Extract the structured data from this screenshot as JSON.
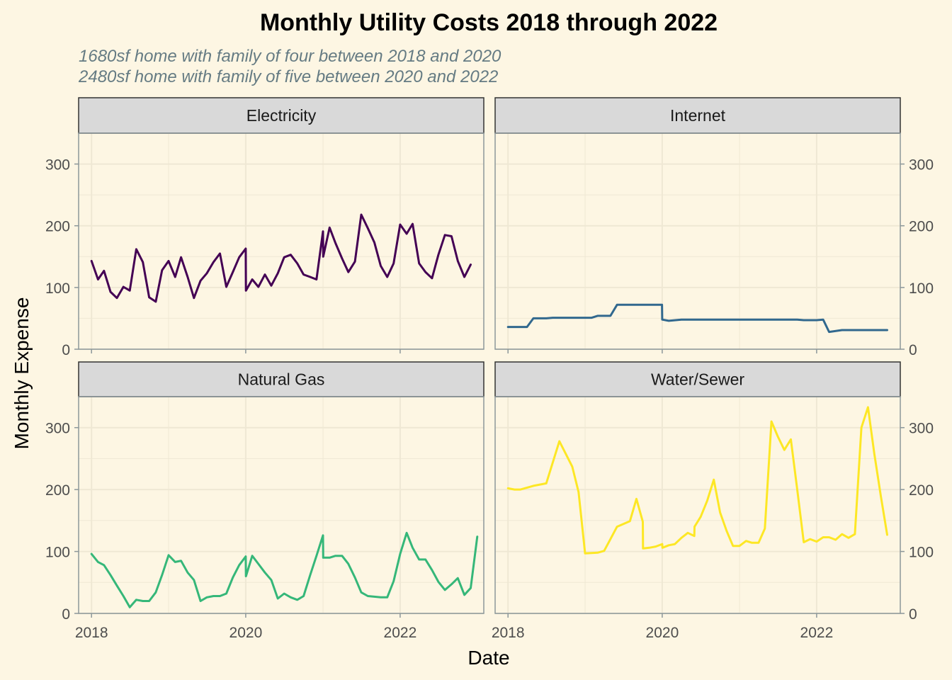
{
  "title": "Monthly Utility Costs 2018 through 2022",
  "subtitle_lines": [
    "1680sf home with family of four between 2018 and 2020",
    "2480sf home with family of five between 2020 and 2022"
  ],
  "colors": {
    "background": "#fdf6e3",
    "strip": "#d9d9d9",
    "grid": "#efe8d4",
    "axis": "#8c979a",
    "subtitle": "#657b83"
  },
  "chart_data": {
    "type": "line",
    "facet_layout": "2x2",
    "xlabel": "Date",
    "ylabel": "Monthly Expense",
    "x_ticks": [
      "2018",
      "2020",
      "2022"
    ],
    "y_ticks": [
      0,
      100,
      200,
      300
    ],
    "xlim": [
      "2017-11-01",
      "2023-02-01"
    ],
    "ylim": [
      0,
      350
    ],
    "grid": true,
    "legend": "none",
    "panels": [
      {
        "name": "Electricity",
        "color": "#440154",
        "points": [
          [
            "2018-01-01",
            143
          ],
          [
            "2018-02-01",
            113
          ],
          [
            "2018-03-01",
            127
          ],
          [
            "2018-04-01",
            93
          ],
          [
            "2018-05-01",
            83
          ],
          [
            "2018-06-01",
            101
          ],
          [
            "2018-07-01",
            95
          ],
          [
            "2018-08-01",
            162
          ],
          [
            "2018-09-01",
            141
          ],
          [
            "2018-10-01",
            84
          ],
          [
            "2018-11-01",
            77
          ],
          [
            "2018-12-01",
            128
          ],
          [
            "2019-01-01",
            143
          ],
          [
            "2019-02-01",
            117
          ],
          [
            "2019-03-01",
            149
          ],
          [
            "2019-04-01",
            117
          ],
          [
            "2019-05-01",
            83
          ],
          [
            "2019-06-01",
            111
          ],
          [
            "2019-07-01",
            123
          ],
          [
            "2019-08-01",
            141
          ],
          [
            "2019-09-01",
            155
          ],
          [
            "2019-10-01",
            101
          ],
          [
            "2019-11-01",
            125
          ],
          [
            "2019-12-01",
            149
          ],
          [
            "2020-01-01",
            163
          ],
          [
            "2020-01-02",
            95
          ],
          [
            "2020-02-01",
            113
          ],
          [
            "2020-03-01",
            101
          ],
          [
            "2020-04-01",
            121
          ],
          [
            "2020-05-01",
            103
          ],
          [
            "2020-06-01",
            123
          ],
          [
            "2020-07-01",
            149
          ],
          [
            "2020-08-01",
            153
          ],
          [
            "2020-09-01",
            139
          ],
          [
            "2020-10-01",
            121
          ],
          [
            "2020-11-01",
            117
          ],
          [
            "2020-12-01",
            113
          ],
          [
            "2021-01-01",
            191
          ],
          [
            "2021-01-02",
            150
          ],
          [
            "2021-02-01",
            197
          ],
          [
            "2021-03-01",
            172
          ],
          [
            "2021-04-01",
            147
          ],
          [
            "2021-05-01",
            125
          ],
          [
            "2021-06-01",
            142
          ],
          [
            "2021-07-01",
            218
          ],
          [
            "2021-08-01",
            196
          ],
          [
            "2021-09-01",
            173
          ],
          [
            "2021-10-01",
            135
          ],
          [
            "2021-11-01",
            117
          ],
          [
            "2021-12-01",
            139
          ],
          [
            "2022-01-01",
            202
          ],
          [
            "2022-02-01",
            187
          ],
          [
            "2022-03-01",
            203
          ],
          [
            "2022-04-01",
            139
          ],
          [
            "2022-05-01",
            125
          ],
          [
            "2022-06-01",
            115
          ],
          [
            "2022-07-01",
            153
          ],
          [
            "2022-08-01",
            185
          ],
          [
            "2022-09-01",
            183
          ],
          [
            "2022-10-01",
            143
          ],
          [
            "2022-11-01",
            117
          ],
          [
            "2022-12-01",
            137
          ]
        ]
      },
      {
        "name": "Internet",
        "color": "#31688e",
        "points": [
          [
            "2018-01-01",
            36
          ],
          [
            "2018-04-01",
            36
          ],
          [
            "2018-05-01",
            50
          ],
          [
            "2018-07-01",
            50
          ],
          [
            "2018-08-01",
            51
          ],
          [
            "2019-01-01",
            51
          ],
          [
            "2019-02-01",
            51
          ],
          [
            "2019-03-01",
            54
          ],
          [
            "2019-05-01",
            54
          ],
          [
            "2019-06-01",
            72
          ],
          [
            "2019-12-31",
            72
          ],
          [
            "2020-01-01",
            48
          ],
          [
            "2020-02-01",
            46
          ],
          [
            "2020-04-01",
            48
          ],
          [
            "2021-10-01",
            48
          ],
          [
            "2021-11-01",
            47
          ],
          [
            "2022-01-01",
            47
          ],
          [
            "2022-02-01",
            48
          ],
          [
            "2022-03-01",
            28
          ],
          [
            "2022-05-01",
            31
          ],
          [
            "2022-12-01",
            31
          ]
        ]
      },
      {
        "name": "Natural Gas",
        "color": "#35b779",
        "points": [
          [
            "2018-01-01",
            96
          ],
          [
            "2018-02-01",
            83
          ],
          [
            "2018-03-01",
            78
          ],
          [
            "2018-04-01",
            62
          ],
          [
            "2018-05-01",
            45
          ],
          [
            "2018-06-01",
            28
          ],
          [
            "2018-07-01",
            10
          ],
          [
            "2018-08-01",
            22
          ],
          [
            "2018-09-01",
            20
          ],
          [
            "2018-10-01",
            20
          ],
          [
            "2018-11-01",
            34
          ],
          [
            "2018-12-01",
            62
          ],
          [
            "2019-01-01",
            94
          ],
          [
            "2019-02-01",
            83
          ],
          [
            "2019-03-01",
            85
          ],
          [
            "2019-04-01",
            66
          ],
          [
            "2019-05-01",
            54
          ],
          [
            "2019-06-01",
            20
          ],
          [
            "2019-07-01",
            26
          ],
          [
            "2019-08-01",
            28
          ],
          [
            "2019-09-01",
            28
          ],
          [
            "2019-10-01",
            32
          ],
          [
            "2019-11-01",
            58
          ],
          [
            "2019-12-01",
            78
          ],
          [
            "2020-01-01",
            92
          ],
          [
            "2020-01-02",
            60
          ],
          [
            "2020-02-01",
            93
          ],
          [
            "2020-03-01",
            80
          ],
          [
            "2020-04-01",
            66
          ],
          [
            "2020-05-01",
            54
          ],
          [
            "2020-06-01",
            24
          ],
          [
            "2020-07-01",
            32
          ],
          [
            "2020-08-01",
            26
          ],
          [
            "2020-09-01",
            22
          ],
          [
            "2020-10-01",
            28
          ],
          [
            "2020-11-01",
            62
          ],
          [
            "2020-12-01",
            93
          ],
          [
            "2021-01-01",
            126
          ],
          [
            "2021-01-02",
            90
          ],
          [
            "2021-02-01",
            90
          ],
          [
            "2021-03-01",
            93
          ],
          [
            "2021-04-01",
            93
          ],
          [
            "2021-05-01",
            80
          ],
          [
            "2021-06-01",
            58
          ],
          [
            "2021-07-01",
            34
          ],
          [
            "2021-08-01",
            28
          ],
          [
            "2021-09-01",
            27
          ],
          [
            "2021-10-01",
            26
          ],
          [
            "2021-11-01",
            26
          ],
          [
            "2021-12-01",
            52
          ],
          [
            "2022-01-01",
            96
          ],
          [
            "2022-02-01",
            130
          ],
          [
            "2022-03-01",
            106
          ],
          [
            "2022-04-01",
            87
          ],
          [
            "2022-05-01",
            87
          ],
          [
            "2022-06-01",
            70
          ],
          [
            "2022-07-01",
            51
          ],
          [
            "2022-08-01",
            38
          ],
          [
            "2022-09-01",
            47
          ],
          [
            "2022-10-01",
            57
          ],
          [
            "2022-11-01",
            30
          ],
          [
            "2022-12-01",
            41
          ],
          [
            "2023-01-01",
            124
          ]
        ]
      },
      {
        "name": "Water/Sewer",
        "color": "#fde725",
        "points": [
          [
            "2018-01-01",
            202
          ],
          [
            "2018-02-01",
            200
          ],
          [
            "2018-03-01",
            200
          ],
          [
            "2018-05-01",
            206
          ],
          [
            "2018-06-01",
            208
          ],
          [
            "2018-07-01",
            210
          ],
          [
            "2018-09-01",
            278
          ],
          [
            "2018-11-01",
            237
          ],
          [
            "2018-12-01",
            196
          ],
          [
            "2019-01-01",
            97
          ],
          [
            "2019-03-01",
            98
          ],
          [
            "2019-04-01",
            101
          ],
          [
            "2019-05-01",
            120
          ],
          [
            "2019-06-01",
            140
          ],
          [
            "2019-08-01",
            149
          ],
          [
            "2019-09-01",
            185
          ],
          [
            "2019-10-01",
            148
          ],
          [
            "2019-10-02",
            105
          ],
          [
            "2019-11-01",
            106
          ],
          [
            "2019-12-01",
            108
          ],
          [
            "2020-01-01",
            112
          ],
          [
            "2020-01-02",
            106
          ],
          [
            "2020-02-01",
            110
          ],
          [
            "2020-03-01",
            112
          ],
          [
            "2020-04-01",
            122
          ],
          [
            "2020-05-01",
            130
          ],
          [
            "2020-06-01",
            125
          ],
          [
            "2020-06-02",
            140
          ],
          [
            "2020-07-01",
            156
          ],
          [
            "2020-08-01",
            182
          ],
          [
            "2020-09-01",
            216
          ],
          [
            "2020-10-01",
            163
          ],
          [
            "2020-11-01",
            133
          ],
          [
            "2020-12-01",
            109
          ],
          [
            "2021-01-01",
            109
          ],
          [
            "2021-02-01",
            117
          ],
          [
            "2021-03-01",
            114
          ],
          [
            "2021-04-01",
            114
          ],
          [
            "2021-05-01",
            137
          ],
          [
            "2021-06-01",
            310
          ],
          [
            "2021-07-01",
            286
          ],
          [
            "2021-08-01",
            264
          ],
          [
            "2021-09-01",
            281
          ],
          [
            "2021-10-01",
            200
          ],
          [
            "2021-11-01",
            115
          ],
          [
            "2021-12-01",
            120
          ],
          [
            "2022-01-01",
            116
          ],
          [
            "2022-02-01",
            123
          ],
          [
            "2022-03-01",
            123
          ],
          [
            "2022-04-01",
            119
          ],
          [
            "2022-05-01",
            128
          ],
          [
            "2022-06-01",
            122
          ],
          [
            "2022-07-01",
            128
          ],
          [
            "2022-08-01",
            300
          ],
          [
            "2022-09-01",
            333
          ],
          [
            "2022-10-01",
            258
          ],
          [
            "2022-11-01",
            189
          ],
          [
            "2022-12-01",
            127
          ]
        ]
      }
    ]
  }
}
